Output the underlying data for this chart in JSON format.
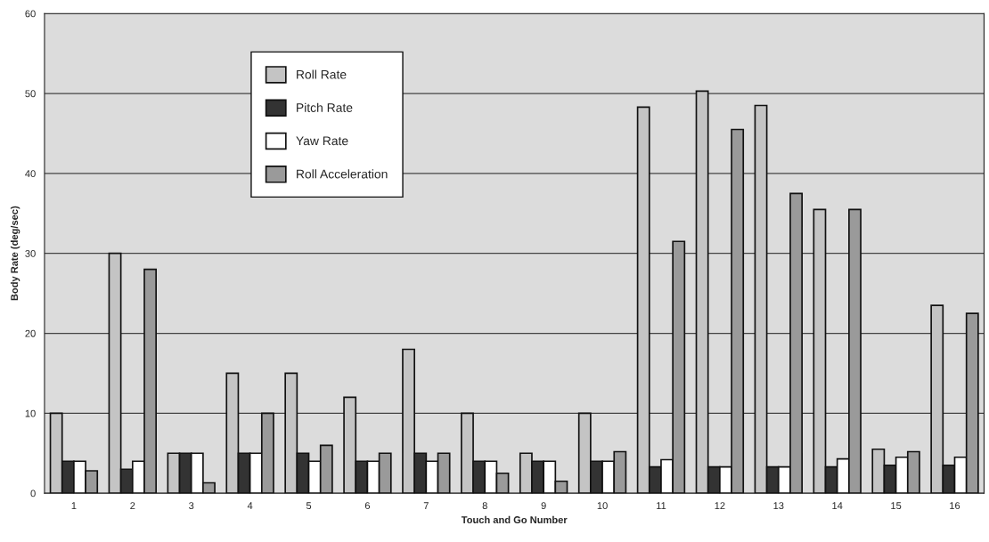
{
  "chart_data": {
    "type": "bar",
    "xlabel": "Touch and Go Number",
    "ylabel": "Body Rate (deg/sec)",
    "categories": [
      "1",
      "2",
      "3",
      "4",
      "5",
      "6",
      "7",
      "8",
      "9",
      "10",
      "11",
      "12",
      "13",
      "14",
      "15",
      "16"
    ],
    "series": [
      {
        "name": "Roll Rate",
        "color": "#c4c4c4",
        "values": [
          10,
          30,
          5,
          15,
          15,
          12,
          18,
          10,
          5,
          10,
          48.3,
          50.3,
          48.5,
          35.5,
          5.5,
          23.5
        ]
      },
      {
        "name": "Pitch Rate",
        "color": "#333333",
        "values": [
          4,
          3,
          5,
          5,
          5,
          4,
          5,
          4,
          4,
          4,
          3.3,
          3.3,
          3.3,
          3.3,
          3.5,
          3.5
        ]
      },
      {
        "name": "Yaw Rate",
        "color": "#ffffff",
        "values": [
          4,
          4,
          5,
          5,
          4,
          4,
          4,
          4,
          4,
          4,
          4.2,
          3.3,
          3.3,
          4.3,
          4.5,
          4.5
        ]
      },
      {
        "name": "Roll Acceleration",
        "color": "#9a9a9a",
        "values": [
          2.8,
          28,
          1.3,
          10,
          6,
          5,
          5,
          2.5,
          1.5,
          5.2,
          31.5,
          45.5,
          37.5,
          35.5,
          5.2,
          22.5
        ]
      }
    ],
    "ylim": [
      0,
      60
    ],
    "yticks": [
      0,
      10,
      20,
      30,
      40,
      50,
      60
    ],
    "grid": "y",
    "legend": "top left"
  }
}
